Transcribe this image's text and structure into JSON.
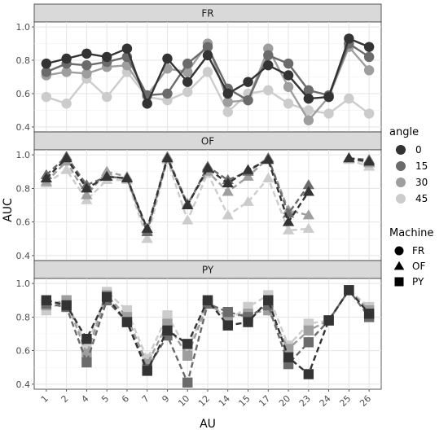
{
  "chart_data": {
    "type": "line",
    "xlabel": "AU",
    "ylabel": "AUC",
    "categories": [
      "1",
      "2",
      "4",
      "5",
      "6",
      "7",
      "9",
      "10",
      "12",
      "14",
      "15",
      "17",
      "20",
      "23",
      "24",
      "25",
      "26"
    ],
    "ylim": [
      0.4,
      1.0
    ],
    "yticks": [
      0.4,
      0.6,
      0.8,
      1.0
    ],
    "grid": true,
    "legend_placement": "right",
    "legends": {
      "angle": {
        "title": "angle",
        "entries": [
          {
            "label": "0",
            "color": "#333333"
          },
          {
            "label": "15",
            "color": "#6b6b6b"
          },
          {
            "label": "30",
            "color": "#9e9e9e"
          },
          {
            "label": "45",
            "color": "#cccccc"
          }
        ]
      },
      "machine": {
        "title": "Machine",
        "entries": [
          {
            "label": "FR",
            "shape": "circle",
            "line": "solid"
          },
          {
            "label": "OF",
            "shape": "triangle",
            "line": "dashed"
          },
          {
            "label": "PY",
            "shape": "square",
            "line": "dashed"
          }
        ]
      }
    },
    "panels": [
      {
        "label": "FR",
        "machine": "FR",
        "series": [
          {
            "angle": "0",
            "values": [
              0.78,
              0.81,
              0.84,
              0.82,
              0.87,
              0.54,
              0.81,
              0.67,
              0.83,
              0.6,
              0.67,
              0.77,
              0.71,
              0.57,
              0.58,
              0.93,
              0.88
            ]
          },
          {
            "angle": "15",
            "values": [
              0.73,
              0.78,
              0.77,
              0.79,
              0.82,
              0.59,
              0.6,
              0.78,
              0.88,
              0.63,
              0.56,
              0.83,
              0.78,
              0.62,
              0.59,
              0.9,
              0.82
            ]
          },
          {
            "angle": "30",
            "values": [
              0.71,
              0.73,
              0.72,
              0.76,
              0.77,
              0.59,
              0.75,
              0.73,
              0.9,
              0.55,
              0.56,
              0.87,
              0.64,
              0.44,
              0.58,
              0.88,
              0.74
            ]
          },
          {
            "angle": "45",
            "values": [
              0.58,
              0.54,
              0.69,
              0.58,
              0.73,
              0.58,
              0.56,
              0.61,
              0.73,
              0.49,
              0.6,
              0.62,
              0.54,
              0.5,
              0.48,
              0.57,
              0.48
            ]
          }
        ]
      },
      {
        "label": "OF",
        "machine": "OF",
        "series": [
          {
            "angle": "0",
            "values": [
              0.86,
              0.98,
              0.8,
              0.87,
              0.86,
              0.56,
              0.98,
              0.7,
              0.92,
              0.83,
              0.91,
              0.97,
              0.6,
              0.78,
              null,
              0.98,
              0.96
            ]
          },
          {
            "angle": "15",
            "values": [
              0.88,
              0.99,
              0.82,
              0.87,
              0.86,
              0.54,
              0.98,
              0.7,
              0.93,
              0.85,
              0.9,
              0.98,
              0.65,
              0.82,
              null,
              0.98,
              0.97
            ]
          },
          {
            "angle": "30",
            "values": [
              0.84,
              0.96,
              0.76,
              0.9,
              0.87,
              0.55,
              0.99,
              0.71,
              0.9,
              0.78,
              0.87,
              0.98,
              0.67,
              0.64,
              null,
              0.98,
              0.95
            ]
          },
          {
            "angle": "45",
            "values": [
              0.83,
              0.91,
              0.73,
              0.85,
              0.85,
              0.5,
              0.97,
              0.61,
              0.89,
              0.64,
              0.72,
              0.86,
              0.55,
              0.56,
              null,
              0.97,
              0.93
            ]
          }
        ]
      },
      {
        "label": "PY",
        "machine": "PY",
        "series": [
          {
            "angle": "0",
            "values": [
              0.9,
              0.87,
              0.67,
              0.92,
              0.77,
              0.48,
              0.72,
              0.64,
              0.9,
              0.75,
              0.77,
              0.9,
              0.56,
              0.46,
              0.78,
              0.96,
              0.82
            ]
          },
          {
            "angle": "15",
            "values": [
              0.88,
              0.86,
              0.53,
              0.9,
              0.77,
              0.49,
              0.69,
              0.41,
              0.88,
              0.83,
              0.8,
              0.87,
              0.52,
              0.65,
              0.78,
              0.96,
              0.8
            ]
          },
          {
            "angle": "30",
            "values": [
              0.87,
              0.9,
              0.58,
              0.93,
              0.8,
              0.52,
              0.76,
              0.57,
              0.88,
              0.8,
              0.82,
              0.84,
              0.61,
              0.72,
              0.78,
              0.96,
              0.84
            ]
          },
          {
            "angle": "45",
            "values": [
              0.84,
              0.9,
              0.62,
              0.95,
              0.84,
              0.55,
              0.81,
              0.6,
              0.9,
              0.78,
              0.86,
              0.93,
              0.63,
              0.76,
              0.78,
              0.96,
              0.86
            ]
          }
        ]
      }
    ]
  }
}
